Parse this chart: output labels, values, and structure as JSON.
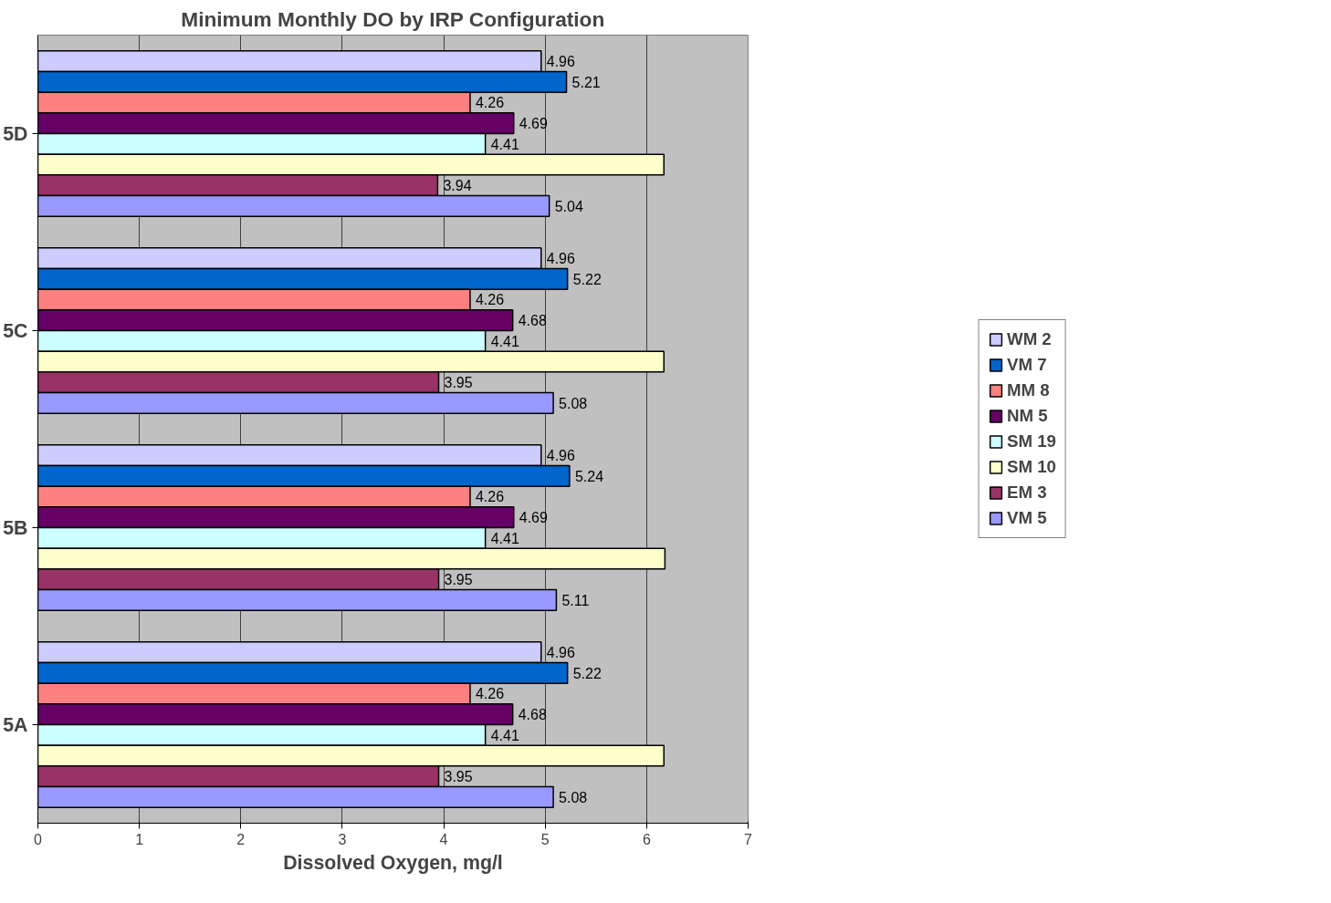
{
  "chart_data": {
    "type": "bar",
    "orientation": "horizontal",
    "title": "Minimum Monthly DO by IRP Configuration",
    "xlabel": "Dissolved Oxygen, mg/l",
    "categories": [
      "5D",
      "5C",
      "5B",
      "5A"
    ],
    "series": [
      {
        "name": "WM 2",
        "color": "#ccccff",
        "values": [
          4.96,
          4.96,
          4.96,
          4.96
        ],
        "value_labels": [
          "4.96",
          "4.96",
          "4.96",
          "4.96"
        ]
      },
      {
        "name": "VM 7",
        "color": "#0066cc",
        "values": [
          5.21,
          5.22,
          5.24,
          5.22
        ],
        "value_labels": [
          "5.21",
          "5.22",
          "5.24",
          "5.22"
        ]
      },
      {
        "name": "MM 8",
        "color": "#ff8080",
        "values": [
          4.26,
          4.26,
          4.26,
          4.26
        ],
        "value_labels": [
          "4.26",
          "4.26",
          "4.26",
          "4.26"
        ]
      },
      {
        "name": "NM 5",
        "color": "#660066",
        "values": [
          4.69,
          4.68,
          4.69,
          4.68
        ],
        "value_labels": [
          "4.69",
          "4.68",
          "4.69",
          "4.68"
        ]
      },
      {
        "name": "SM 19",
        "color": "#ccffff",
        "values": [
          4.41,
          4.41,
          4.41,
          4.41
        ],
        "value_labels": [
          "4.41",
          "4.41",
          "4.41",
          "4.41"
        ]
      },
      {
        "name": "SM 10",
        "color": "#ffffcc",
        "values": [
          6.17,
          6.17,
          6.18,
          6.17
        ],
        "value_labels": [
          null,
          null,
          null,
          null
        ]
      },
      {
        "name": "EM 3",
        "color": "#993366",
        "values": [
          3.94,
          3.95,
          3.95,
          3.95
        ],
        "value_labels": [
          "3.94",
          "3.95",
          "3.95",
          "3.95"
        ]
      },
      {
        "name": "VM 5",
        "color": "#9999ff",
        "values": [
          5.04,
          5.08,
          5.11,
          5.08
        ],
        "value_labels": [
          "5.04",
          "5.08",
          "5.11",
          "5.08"
        ]
      }
    ],
    "xlim": [
      0,
      7
    ],
    "xticks": [
      0,
      1,
      2,
      3,
      4,
      5,
      6,
      7
    ],
    "grid": "x",
    "legend": "right"
  }
}
